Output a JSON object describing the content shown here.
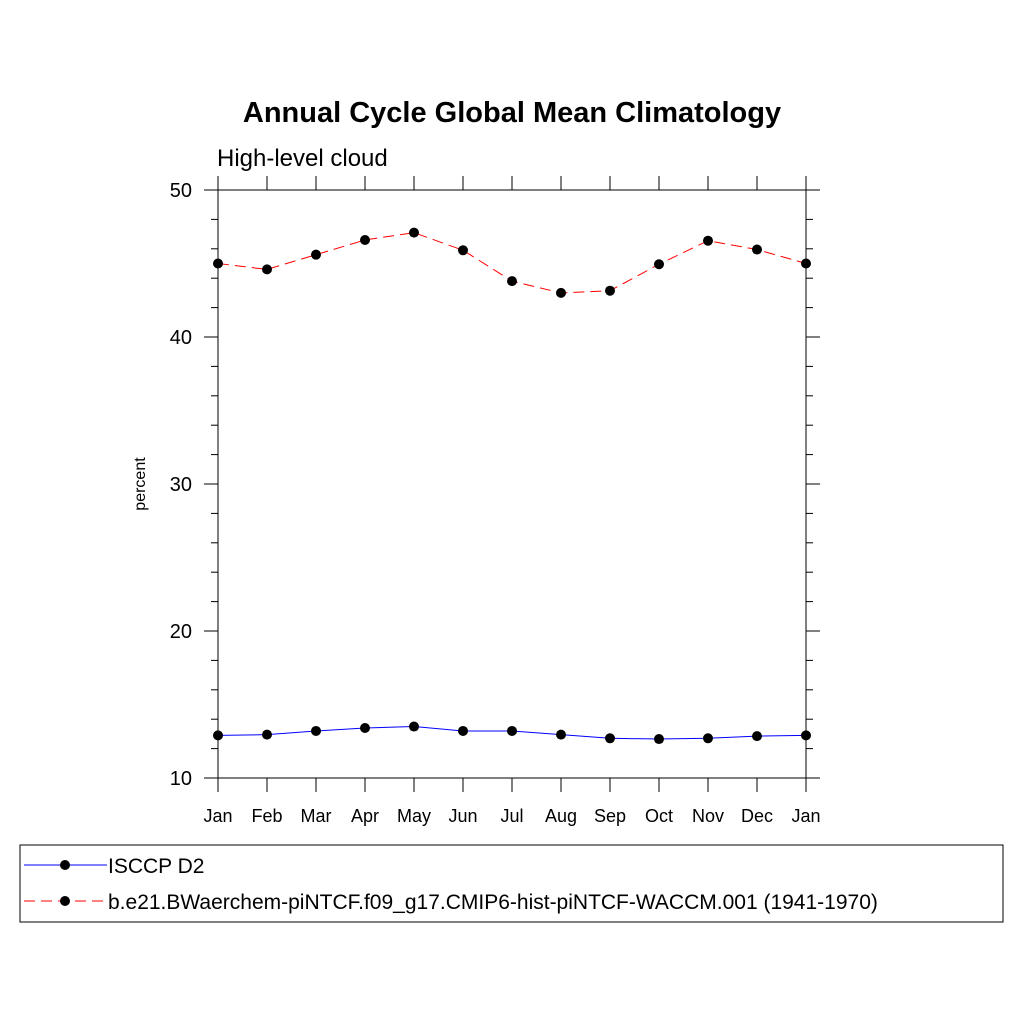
{
  "chart_data": {
    "type": "line",
    "title": "Annual Cycle Global Mean Climatology",
    "subtitle": "High-level cloud",
    "ylabel": "percent",
    "xlabel": "",
    "ylim": [
      10,
      50
    ],
    "yticks": [
      10,
      20,
      30,
      40,
      50
    ],
    "y_minor_step": 2,
    "categories": [
      "Jan",
      "Feb",
      "Mar",
      "Apr",
      "May",
      "Jun",
      "Jul",
      "Aug",
      "Sep",
      "Oct",
      "Nov",
      "Dec",
      "Jan"
    ],
    "series": [
      {
        "name": "ISCCP D2",
        "color": "#0000ff",
        "line_style": "solid",
        "marker": "filled-circle",
        "values": [
          12.9,
          12.95,
          13.2,
          13.4,
          13.5,
          13.2,
          13.2,
          12.95,
          12.7,
          12.65,
          12.7,
          12.85,
          12.9
        ]
      },
      {
        "name": "b.e21.BWaerchem-piNTCF.f09_g17.CMIP6-hist-piNTCF-WACCM.001 (1941-1970)",
        "color": "#ff0000",
        "line_style": "dashed",
        "marker": "filled-circle",
        "values": [
          45.0,
          44.6,
          45.6,
          46.6,
          47.1,
          45.9,
          43.8,
          43.0,
          43.15,
          44.95,
          46.55,
          45.95,
          45.0
        ]
      }
    ],
    "grid": false,
    "legend_position": "bottom"
  }
}
